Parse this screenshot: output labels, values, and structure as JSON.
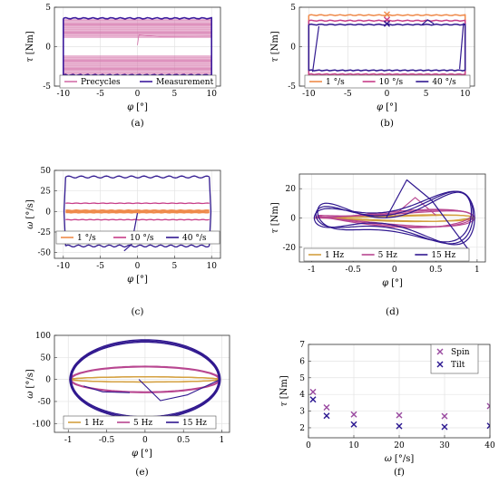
{
  "panels": [
    {
      "key": "a",
      "caption": "(a)",
      "xlabel": "φ",
      "xunit": "[°]",
      "ylabel": "τ",
      "yunit": "[Nm]",
      "xlim": [
        -11.2,
        11.2
      ],
      "ylim": [
        -5,
        5
      ],
      "xticks": [
        "-10",
        "-5",
        "0",
        "5",
        "10"
      ],
      "xtick_values": [
        -10,
        -5,
        0,
        5,
        10
      ],
      "yticks": [
        "-5",
        "0",
        "5"
      ],
      "ytick_values": [
        -5,
        0,
        5
      ],
      "legend": [
        {
          "label": "Precycles",
          "color": "#d36fa8"
        },
        {
          "label": "Measurement",
          "color": "#3c1a9c"
        }
      ]
    },
    {
      "key": "b",
      "caption": "(b)",
      "xlabel": "φ",
      "xunit": "[°]",
      "ylabel": "τ",
      "yunit": "[Nm]",
      "xlim": [
        -11.2,
        11.2
      ],
      "ylim": [
        -5,
        5
      ],
      "xticks": [
        "-10",
        "-5",
        "0",
        "5",
        "10"
      ],
      "xtick_values": [
        -10,
        -5,
        0,
        5,
        10
      ],
      "yticks": [
        "-5",
        "0",
        "5"
      ],
      "ytick_values": [
        -5,
        0,
        5
      ],
      "legend": [
        {
          "label": "1 °/s",
          "color": "#ef8a4a"
        },
        {
          "label": "10 °/s",
          "color": "#c63d88"
        },
        {
          "label": "40 °/s",
          "color": "#30188f"
        }
      ]
    },
    {
      "key": "c",
      "caption": "(c)",
      "xlabel": "φ",
      "xunit": "[°]",
      "ylabel": "ω",
      "yunit": "[°/s]",
      "xlim": [
        -11.2,
        11.2
      ],
      "ylim": [
        -57,
        50
      ],
      "xticks": [
        "-10",
        "-5",
        "0",
        "5",
        "10"
      ],
      "xtick_values": [
        -10,
        -5,
        0,
        5,
        10
      ],
      "yticks": [
        "-50",
        "-25",
        "0",
        "25",
        "50"
      ],
      "ytick_values": [
        -50,
        -25,
        0,
        25,
        50
      ],
      "legend": [
        {
          "label": "1 °/s",
          "color": "#ef8a4a"
        },
        {
          "label": "10 °/s",
          "color": "#c63d88"
        },
        {
          "label": "40 °/s",
          "color": "#30188f"
        }
      ]
    },
    {
      "key": "d",
      "caption": "(d)",
      "xlabel": "φ",
      "xunit": "[°]",
      "ylabel": "τ",
      "yunit": "[Nm]",
      "xlim": [
        -1.15,
        1.1
      ],
      "ylim": [
        -30,
        30
      ],
      "xticks": [
        "-1",
        "-0.5",
        "0",
        "0.5",
        "1"
      ],
      "xtick_values": [
        -1,
        -0.5,
        0,
        0.5,
        1
      ],
      "yticks": [
        "-20",
        "0",
        "20"
      ],
      "ytick_values": [
        -20,
        0,
        20
      ],
      "legend": [
        {
          "label": "1 Hz",
          "color": "#d4a040"
        },
        {
          "label": "5 Hz",
          "color": "#b84690"
        },
        {
          "label": "15 Hz",
          "color": "#30188f"
        }
      ]
    },
    {
      "key": "e",
      "caption": "(e)",
      "xlabel": "φ",
      "xunit": "[°]",
      "ylabel": "ω",
      "yunit": "[°/s]",
      "xlim": [
        -1.18,
        1.1
      ],
      "ylim": [
        -120,
        100
      ],
      "xticks": [
        "-1",
        "-0.5",
        "0",
        "0.5",
        "1"
      ],
      "xtick_values": [
        -1,
        -0.5,
        0,
        0.5,
        1
      ],
      "yticks": [
        "-100",
        "-50",
        "0",
        "50",
        "100"
      ],
      "ytick_values": [
        -100,
        -50,
        0,
        50,
        100
      ],
      "legend": [
        {
          "label": "1 Hz",
          "color": "#d4a040"
        },
        {
          "label": "5 Hz",
          "color": "#b84690"
        },
        {
          "label": "15 Hz",
          "color": "#30188f"
        }
      ]
    },
    {
      "key": "f",
      "caption": "(f)",
      "xlabel": "ω",
      "xunit": "[°/s]",
      "ylabel": "τ",
      "yunit": "[Nm]",
      "xlim": [
        0,
        40
      ],
      "ylim": [
        1.4,
        7
      ],
      "xticks": [
        "0",
        "10",
        "20",
        "30",
        "40"
      ],
      "xtick_values": [
        0,
        10,
        20,
        30,
        40
      ],
      "yticks": [
        "2",
        "3",
        "4",
        "5",
        "6",
        "7"
      ],
      "ytick_values": [
        2,
        3,
        4,
        5,
        6,
        7
      ],
      "legend": [
        {
          "label": "Spin",
          "color": "#9a4aa0"
        },
        {
          "label": "Tilt",
          "color": "#2a1690"
        }
      ]
    }
  ],
  "chart_data": [
    {
      "panel": "a",
      "type": "line",
      "series": [
        {
          "name": "Precycles",
          "color": "#d36fa8",
          "loop": {
            "x_min": -10,
            "x_max": 10,
            "upper": [
              1.2,
              3.4
            ],
            "lower": [
              -1.2,
              -3.4
            ]
          }
        },
        {
          "name": "Measurement",
          "color": "#3c1a9c",
          "loop": {
            "x_min": -10,
            "x_max": 10,
            "upper": 3.6,
            "lower": -3.6
          }
        }
      ]
    },
    {
      "panel": "b",
      "type": "line",
      "series": [
        {
          "name": "1 °/s",
          "color": "#ef8a4a",
          "loop": {
            "x_min": -10,
            "x_max": 10,
            "upper": 4.0,
            "lower": -4.1
          }
        },
        {
          "name": "10 °/s",
          "color": "#c63d88",
          "loop": {
            "x_min": -10,
            "x_max": 10,
            "upper": 3.3,
            "lower": -3.5
          }
        },
        {
          "name": "40 °/s",
          "color": "#30188f",
          "loop": {
            "x_min": -10,
            "x_max": 10,
            "upper": 2.8,
            "lower": -3.0
          }
        }
      ]
    },
    {
      "panel": "c",
      "type": "line",
      "series": [
        {
          "name": "1 °/s",
          "color": "#ef8a4a",
          "level": 1
        },
        {
          "name": "10 °/s",
          "color": "#c63d88",
          "level": 10
        },
        {
          "name": "40 °/s",
          "color": "#30188f",
          "level": 42
        }
      ]
    },
    {
      "panel": "d",
      "type": "line",
      "series": [
        {
          "name": "1 Hz",
          "color": "#d4a040",
          "amplitude": 3
        },
        {
          "name": "5 Hz",
          "color": "#b84690",
          "amplitude": 8
        },
        {
          "name": "15 Hz",
          "color": "#30188f",
          "amplitude": 20
        }
      ]
    },
    {
      "panel": "e",
      "type": "line",
      "series": [
        {
          "name": "1 Hz",
          "color": "#d4a040",
          "amplitude": 6
        },
        {
          "name": "5 Hz",
          "color": "#b84690",
          "amplitude": 30
        },
        {
          "name": "15 Hz",
          "color": "#30188f",
          "amplitude": 90
        }
      ]
    },
    {
      "panel": "f",
      "type": "scatter",
      "x": [
        1,
        4,
        10,
        20,
        30,
        40
      ],
      "series": [
        {
          "name": "Spin",
          "color": "#9a4aa0",
          "values": [
            4.15,
            3.22,
            2.8,
            2.75,
            2.7,
            3.3
          ]
        },
        {
          "name": "Tilt",
          "color": "#2a1690",
          "values": [
            3.7,
            2.72,
            2.2,
            2.1,
            2.05,
            2.12
          ]
        }
      ]
    }
  ]
}
